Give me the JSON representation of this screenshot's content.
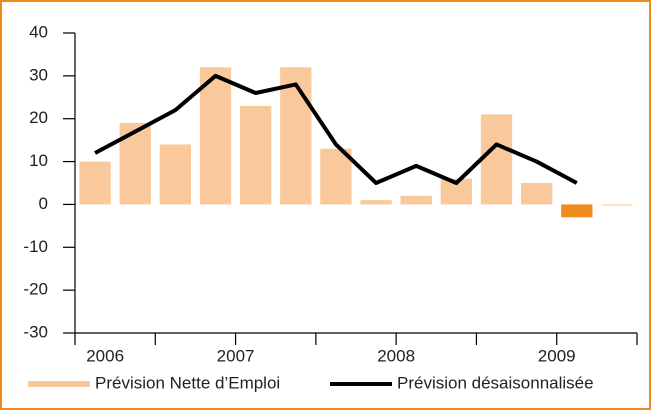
{
  "chart_data": {
    "type": "bar_line",
    "categories": [
      null,
      null,
      null,
      null,
      null,
      null,
      null,
      null,
      null,
      null,
      null,
      null,
      null,
      null
    ],
    "year_labels": [
      "2006",
      "2007",
      "2008",
      "2009"
    ],
    "series": [
      {
        "name": "Prévision Nette d’Emploi",
        "type": "bar",
        "color": "#f9c89b",
        "negative_color": "#ef8a1f",
        "values": [
          10,
          19,
          14,
          32,
          23,
          32,
          13,
          1,
          2,
          6,
          21,
          5,
          -3,
          0
        ]
      },
      {
        "name": "Prévision désaisonnalisée",
        "type": "line",
        "color": "#000000",
        "values": [
          12,
          17,
          22,
          30,
          26,
          28,
          14,
          5,
          9,
          5,
          14,
          10,
          5,
          null
        ]
      }
    ],
    "ylim": [
      -30,
      40
    ],
    "yticks": [
      -30,
      -20,
      -10,
      0,
      10,
      20,
      30,
      40
    ],
    "grid": false,
    "legend": "bottom"
  }
}
